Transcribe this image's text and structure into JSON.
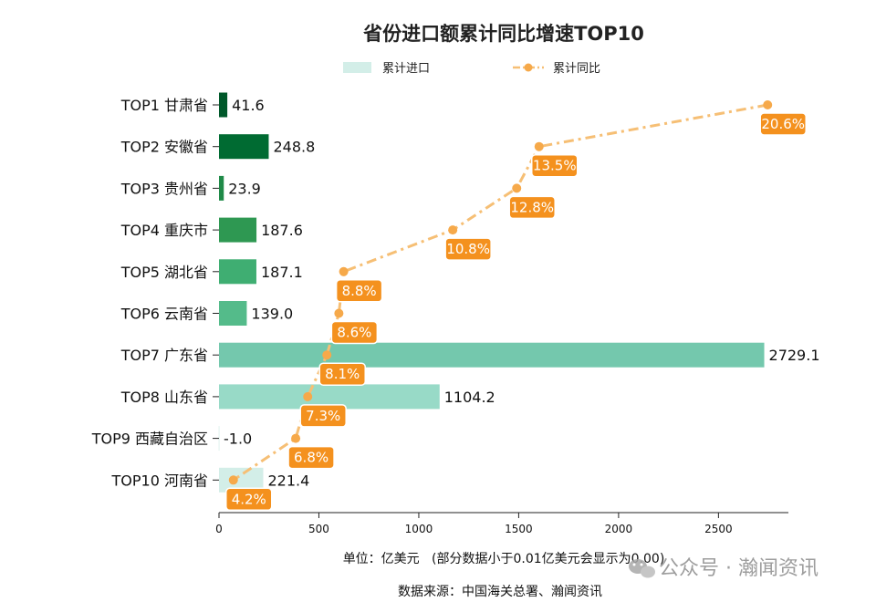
{
  "chart_data": {
    "type": "bar",
    "title": "省份进口额累计同比增速TOP10",
    "categories": [
      "TOP1 甘肃省",
      "TOP2 安徽省",
      "TOP3 贵州省",
      "TOP4 重庆市",
      "TOP5 湖北省",
      "TOP6 云南省",
      "TOP7 广东省",
      "TOP8 山东省",
      "TOP9 西藏自治区",
      "TOP10 河南省"
    ],
    "series": [
      {
        "name": "累计进口",
        "kind": "bar",
        "values": [
          41.6,
          248.8,
          23.9,
          187.6,
          187.1,
          139.0,
          2729.1,
          1104.2,
          -1.0,
          221.4
        ],
        "labels": [
          "41.6",
          "248.8",
          "23.9",
          "187.6",
          "187.1",
          "139.0",
          "2729.1",
          "1104.2",
          "-1.0",
          "221.4"
        ],
        "colors": [
          "#00582a",
          "#006b32",
          "#1f8a48",
          "#2e9852",
          "#3fae72",
          "#54bb8a",
          "#74c8ad",
          "#98dac7",
          "#c0e8dd",
          "#d3eee8"
        ]
      },
      {
        "name": "累计同比",
        "kind": "line",
        "values": [
          20.6,
          13.5,
          12.8,
          10.8,
          8.8,
          8.6,
          8.1,
          7.3,
          6.8,
          4.2
        ],
        "labels": [
          "20.6%",
          "13.5%",
          "12.8%",
          "10.8%",
          "8.8%",
          "8.6%",
          "8.1%",
          "7.3%",
          "6.8%",
          "4.2%"
        ],
        "line_color": "#f6bf75",
        "point_color": "#f6a94a",
        "label_bg": "#f4911e"
      }
    ],
    "legend": {
      "position": "top-center",
      "bar_swatch": "#d3eee8"
    },
    "xaxis": {
      "lim": [
        0,
        2850
      ],
      "ticks": [
        0,
        500,
        1000,
        1500,
        2000,
        2500
      ],
      "tick_labels": [
        "0",
        "500",
        "1000",
        "1500",
        "2000",
        "2500"
      ],
      "label": "单位：亿美元   (部分数据小于0.01亿美元会显示为0.00)"
    },
    "grid": false
  },
  "source": "数据来源：中国海关总署、瀚闻资讯",
  "watermark": "公众号 · 瀚闻资讯"
}
